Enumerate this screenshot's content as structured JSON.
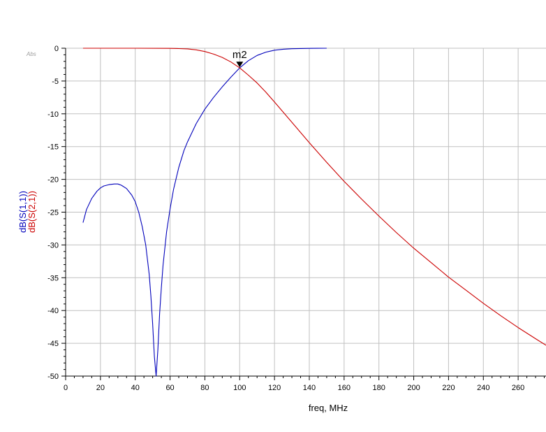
{
  "chart_data": {
    "type": "line",
    "corner_label": "Abs",
    "xlabel": "freq, MHz",
    "ylabels": [
      "dB(S(1,1))",
      "dB(S(2,1))"
    ],
    "xlim": [
      0,
      276
    ],
    "ylim": [
      -50,
      0
    ],
    "x_ticks": [
      0,
      20,
      40,
      60,
      80,
      100,
      120,
      140,
      160,
      180,
      200,
      220,
      240,
      260
    ],
    "y_ticks": [
      0,
      -5,
      -10,
      -15,
      -20,
      -25,
      -30,
      -35,
      -40,
      -45,
      -50
    ],
    "grid": true,
    "series": [
      {
        "name": "dB(S(1,1))",
        "color": "#0000bb",
        "x": [
          10,
          12,
          15,
          18,
          20,
          22,
          25,
          28,
          30,
          32,
          35,
          38,
          40,
          42,
          44,
          46,
          48,
          49,
          50,
          51,
          52,
          53,
          54,
          55,
          56,
          58,
          60,
          62,
          65,
          68,
          70,
          75,
          80,
          85,
          90,
          95,
          100,
          105,
          110,
          115,
          120,
          125,
          130,
          135,
          140,
          145,
          150
        ],
        "y": [
          -26.6,
          -24.6,
          -22.9,
          -21.8,
          -21.3,
          -21.0,
          -20.8,
          -20.7,
          -20.7,
          -20.9,
          -21.4,
          -22.4,
          -23.4,
          -25.0,
          -27.2,
          -30.0,
          -34.5,
          -37.8,
          -42.0,
          -47.0,
          -50.0,
          -46.0,
          -40.5,
          -36.5,
          -33.0,
          -28.0,
          -24.5,
          -21.5,
          -18.2,
          -15.6,
          -14.3,
          -11.5,
          -9.3,
          -7.5,
          -5.9,
          -4.4,
          -3.0,
          -1.9,
          -1.1,
          -0.6,
          -0.3,
          -0.15,
          -0.07,
          -0.04,
          -0.02,
          -0.01,
          0.0
        ]
      },
      {
        "name": "dB(S(2,1))",
        "color": "#cc0000",
        "x": [
          10,
          20,
          40,
          60,
          65,
          70,
          75,
          80,
          85,
          90,
          95,
          100,
          105,
          110,
          115,
          120,
          130,
          140,
          150,
          160,
          170,
          180,
          190,
          200,
          210,
          220,
          230,
          240,
          250,
          260,
          270,
          276
        ],
        "y": [
          0.0,
          0.0,
          0.0,
          -0.02,
          -0.05,
          -0.1,
          -0.25,
          -0.5,
          -0.9,
          -1.4,
          -2.1,
          -3.0,
          -4.1,
          -5.3,
          -6.7,
          -8.2,
          -11.3,
          -14.4,
          -17.4,
          -20.3,
          -23.0,
          -25.6,
          -28.1,
          -30.5,
          -32.7,
          -34.9,
          -36.9,
          -38.9,
          -40.8,
          -42.6,
          -44.3,
          -45.3
        ]
      }
    ],
    "marker": {
      "label": "m2",
      "x": 100,
      "y": -2.9
    }
  }
}
